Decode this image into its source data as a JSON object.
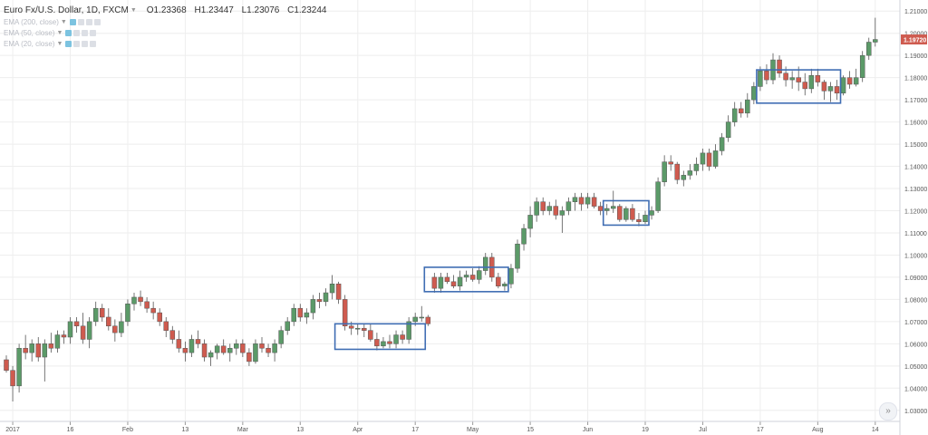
{
  "legend": {
    "symbol": "Euro Fx/U.S. Dollar, 1D, FXCM",
    "open": "O1.23368",
    "high": "H1.23447",
    "low": "L1.23076",
    "close": "C1.23244",
    "studies": [
      "EMA (200, close)",
      "EMA (50, close)",
      "EMA (20, close)"
    ]
  },
  "scroll_icon": "double-chevron-right-icon",
  "colors": {
    "up": "#5b9a68",
    "down": "#cf5b4f",
    "box": "#3f6db3",
    "grid": "#eeeeee",
    "price_tag": "#cf5b4f"
  },
  "chart_data": {
    "type": "candlestick",
    "title": "",
    "ylim": [
      1.025,
      1.215
    ],
    "y_ticks": [
      "1.21000",
      "1.20000",
      "1.19000",
      "1.18000",
      "1.17000",
      "1.16000",
      "1.15000",
      "1.14000",
      "1.13000",
      "1.12000",
      "1.11000",
      "1.10000",
      "1.09000",
      "1.08000",
      "1.07000",
      "1.06000",
      "1.05000",
      "1.04000",
      "1.03000"
    ],
    "x_ticks": [
      "2017",
      "16",
      "Feb",
      "13",
      "Mar",
      "13",
      "Apr",
      "17",
      "May",
      "15",
      "Jun",
      "19",
      "Jul",
      "17",
      "Aug",
      "14"
    ],
    "x_tick_bars": [
      1,
      10,
      19,
      28,
      37,
      46,
      55,
      64,
      73,
      82,
      91,
      100,
      109,
      118,
      127,
      136
    ],
    "last_price": "1.19720",
    "candles": [
      [
        1.0528,
        1.0548,
        1.047,
        1.048
      ],
      [
        1.048,
        1.05,
        1.034,
        1.041
      ],
      [
        1.041,
        1.06,
        1.038,
        1.058
      ],
      [
        1.058,
        1.064,
        1.053,
        1.056
      ],
      [
        1.056,
        1.062,
        1.052,
        1.06
      ],
      [
        1.06,
        1.063,
        1.052,
        1.054
      ],
      [
        1.054,
        1.062,
        1.043,
        1.06
      ],
      [
        1.06,
        1.065,
        1.056,
        1.058
      ],
      [
        1.058,
        1.066,
        1.056,
        1.064
      ],
      [
        1.064,
        1.066,
        1.06,
        1.063
      ],
      [
        1.063,
        1.072,
        1.06,
        1.07
      ],
      [
        1.07,
        1.072,
        1.065,
        1.068
      ],
      [
        1.068,
        1.074,
        1.06,
        1.062
      ],
      [
        1.062,
        1.072,
        1.058,
        1.07
      ],
      [
        1.07,
        1.079,
        1.068,
        1.076
      ],
      [
        1.076,
        1.078,
        1.07,
        1.072
      ],
      [
        1.072,
        1.076,
        1.066,
        1.068
      ],
      [
        1.068,
        1.071,
        1.061,
        1.065
      ],
      [
        1.065,
        1.074,
        1.063,
        1.07
      ],
      [
        1.07,
        1.08,
        1.068,
        1.078
      ],
      [
        1.078,
        1.083,
        1.075,
        1.081
      ],
      [
        1.081,
        1.084,
        1.077,
        1.079
      ],
      [
        1.079,
        1.081,
        1.074,
        1.076
      ],
      [
        1.076,
        1.079,
        1.071,
        1.074
      ],
      [
        1.074,
        1.076,
        1.068,
        1.07
      ],
      [
        1.07,
        1.072,
        1.063,
        1.066
      ],
      [
        1.066,
        1.068,
        1.06,
        1.062
      ],
      [
        1.062,
        1.066,
        1.056,
        1.058
      ],
      [
        1.058,
        1.061,
        1.052,
        1.056
      ],
      [
        1.056,
        1.064,
        1.054,
        1.062
      ],
      [
        1.062,
        1.066,
        1.058,
        1.06
      ],
      [
        1.06,
        1.062,
        1.052,
        1.054
      ],
      [
        1.054,
        1.057,
        1.05,
        1.056
      ],
      [
        1.056,
        1.06,
        1.053,
        1.059
      ],
      [
        1.059,
        1.062,
        1.055,
        1.056
      ],
      [
        1.056,
        1.06,
        1.052,
        1.058
      ],
      [
        1.058,
        1.062,
        1.055,
        1.06
      ],
      [
        1.06,
        1.062,
        1.054,
        1.056
      ],
      [
        1.056,
        1.058,
        1.05,
        1.052
      ],
      [
        1.052,
        1.062,
        1.051,
        1.06
      ],
      [
        1.06,
        1.063,
        1.056,
        1.058
      ],
      [
        1.058,
        1.06,
        1.054,
        1.056
      ],
      [
        1.056,
        1.062,
        1.052,
        1.06
      ],
      [
        1.06,
        1.068,
        1.058,
        1.066
      ],
      [
        1.066,
        1.072,
        1.064,
        1.07
      ],
      [
        1.07,
        1.078,
        1.068,
        1.076
      ],
      [
        1.076,
        1.078,
        1.07,
        1.072
      ],
      [
        1.072,
        1.076,
        1.069,
        1.074
      ],
      [
        1.074,
        1.082,
        1.071,
        1.08
      ],
      [
        1.08,
        1.083,
        1.076,
        1.079
      ],
      [
        1.079,
        1.085,
        1.077,
        1.083
      ],
      [
        1.083,
        1.091,
        1.08,
        1.087
      ],
      [
        1.087,
        1.088,
        1.078,
        1.08
      ],
      [
        1.08,
        1.082,
        1.066,
        1.068
      ],
      [
        1.068,
        1.07,
        1.064,
        1.067
      ],
      [
        1.067,
        1.069,
        1.064,
        1.067
      ],
      [
        1.067,
        1.069,
        1.063,
        1.066
      ],
      [
        1.066,
        1.069,
        1.061,
        1.062
      ],
      [
        1.062,
        1.065,
        1.057,
        1.059
      ],
      [
        1.059,
        1.063,
        1.058,
        1.061
      ],
      [
        1.061,
        1.064,
        1.058,
        1.06
      ],
      [
        1.06,
        1.066,
        1.058,
        1.064
      ],
      [
        1.064,
        1.066,
        1.06,
        1.062
      ],
      [
        1.062,
        1.072,
        1.06,
        1.07
      ],
      [
        1.07,
        1.074,
        1.068,
        1.072
      ],
      [
        1.072,
        1.077,
        1.07,
        1.072
      ],
      [
        1.072,
        1.073,
        1.068,
        1.069
      ],
      [
        1.09,
        1.092,
        1.083,
        1.085
      ],
      [
        1.085,
        1.092,
        1.083,
        1.09
      ],
      [
        1.09,
        1.092,
        1.087,
        1.088
      ],
      [
        1.088,
        1.091,
        1.085,
        1.086
      ],
      [
        1.086,
        1.093,
        1.084,
        1.09
      ],
      [
        1.09,
        1.093,
        1.088,
        1.091
      ],
      [
        1.091,
        1.094,
        1.088,
        1.089
      ],
      [
        1.089,
        1.095,
        1.087,
        1.093
      ],
      [
        1.093,
        1.101,
        1.091,
        1.099
      ],
      [
        1.099,
        1.101,
        1.088,
        1.09
      ],
      [
        1.09,
        1.092,
        1.085,
        1.086
      ],
      [
        1.086,
        1.088,
        1.084,
        1.087
      ],
      [
        1.087,
        1.096,
        1.085,
        1.094
      ],
      [
        1.094,
        1.107,
        1.092,
        1.105
      ],
      [
        1.105,
        1.114,
        1.102,
        1.112
      ],
      [
        1.112,
        1.122,
        1.108,
        1.118
      ],
      [
        1.118,
        1.126,
        1.115,
        1.124
      ],
      [
        1.124,
        1.126,
        1.118,
        1.12
      ],
      [
        1.12,
        1.124,
        1.118,
        1.122
      ],
      [
        1.122,
        1.125,
        1.116,
        1.118
      ],
      [
        1.118,
        1.122,
        1.11,
        1.12
      ],
      [
        1.12,
        1.126,
        1.118,
        1.124
      ],
      [
        1.124,
        1.128,
        1.12,
        1.126
      ],
      [
        1.126,
        1.128,
        1.12,
        1.123
      ],
      [
        1.123,
        1.128,
        1.121,
        1.126
      ],
      [
        1.126,
        1.128,
        1.121,
        1.122
      ],
      [
        1.122,
        1.124,
        1.118,
        1.12
      ],
      [
        1.12,
        1.123,
        1.118,
        1.121
      ],
      [
        1.121,
        1.129,
        1.119,
        1.122
      ],
      [
        1.122,
        1.123,
        1.115,
        1.116
      ],
      [
        1.116,
        1.122,
        1.115,
        1.121
      ],
      [
        1.121,
        1.123,
        1.115,
        1.116
      ],
      [
        1.116,
        1.119,
        1.113,
        1.115
      ],
      [
        1.115,
        1.12,
        1.114,
        1.118
      ],
      [
        1.118,
        1.122,
        1.116,
        1.12
      ],
      [
        1.12,
        1.135,
        1.119,
        1.133
      ],
      [
        1.133,
        1.145,
        1.131,
        1.142
      ],
      [
        1.142,
        1.145,
        1.138,
        1.141
      ],
      [
        1.141,
        1.142,
        1.132,
        1.134
      ],
      [
        1.134,
        1.138,
        1.131,
        1.136
      ],
      [
        1.136,
        1.141,
        1.134,
        1.138
      ],
      [
        1.138,
        1.144,
        1.136,
        1.141
      ],
      [
        1.141,
        1.148,
        1.138,
        1.146
      ],
      [
        1.146,
        1.148,
        1.138,
        1.14
      ],
      [
        1.14,
        1.15,
        1.139,
        1.147
      ],
      [
        1.147,
        1.155,
        1.145,
        1.153
      ],
      [
        1.153,
        1.163,
        1.151,
        1.16
      ],
      [
        1.16,
        1.169,
        1.158,
        1.166
      ],
      [
        1.166,
        1.169,
        1.162,
        1.164
      ],
      [
        1.164,
        1.173,
        1.162,
        1.17
      ],
      [
        1.17,
        1.178,
        1.168,
        1.176
      ],
      [
        1.176,
        1.185,
        1.174,
        1.183
      ],
      [
        1.183,
        1.186,
        1.177,
        1.179
      ],
      [
        1.179,
        1.191,
        1.177,
        1.188
      ],
      [
        1.188,
        1.19,
        1.18,
        1.182
      ],
      [
        1.182,
        1.185,
        1.176,
        1.179
      ],
      [
        1.179,
        1.183,
        1.175,
        1.18
      ],
      [
        1.18,
        1.185,
        1.174,
        1.178
      ],
      [
        1.178,
        1.182,
        1.172,
        1.175
      ],
      [
        1.175,
        1.184,
        1.173,
        1.181
      ],
      [
        1.181,
        1.184,
        1.176,
        1.178
      ],
      [
        1.178,
        1.179,
        1.17,
        1.174
      ],
      [
        1.174,
        1.178,
        1.169,
        1.176
      ],
      [
        1.176,
        1.179,
        1.17,
        1.173
      ],
      [
        1.173,
        1.181,
        1.172,
        1.18
      ],
      [
        1.18,
        1.183,
        1.175,
        1.177
      ],
      [
        1.177,
        1.184,
        1.176,
        1.18
      ],
      [
        1.18,
        1.192,
        1.178,
        1.19
      ],
      [
        1.19,
        1.198,
        1.188,
        1.196
      ],
      [
        1.196,
        1.207,
        1.194,
        1.1972
      ]
    ],
    "boxes": [
      {
        "from_bar": 52,
        "to_bar": 65,
        "top": 1.069,
        "bottom": 1.0575
      },
      {
        "from_bar": 66,
        "to_bar": 78,
        "top": 1.0945,
        "bottom": 1.0835
      },
      {
        "from_bar": 94,
        "to_bar": 100,
        "top": 1.1245,
        "bottom": 1.1135
      },
      {
        "from_bar": 118,
        "to_bar": 130,
        "top": 1.1835,
        "bottom": 1.1685
      }
    ]
  }
}
